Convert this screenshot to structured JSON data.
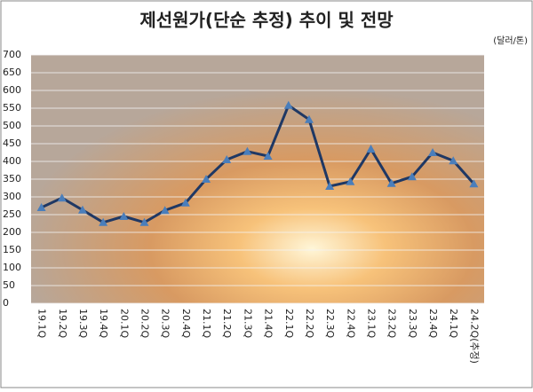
{
  "chart_data": {
    "type": "line",
    "title": "제선원가(단순 추정) 추이 및 전망",
    "unit_label": "(달러/톤)",
    "categories": [
      "19.1Q",
      "19.2Q",
      "19.3Q",
      "19.4Q",
      "20.1Q",
      "20.2Q",
      "20.3Q",
      "20.4Q",
      "21.1Q",
      "21.2Q",
      "21.3Q",
      "21.4Q",
      "22.1Q",
      "22.2Q",
      "22.3Q",
      "22.4Q",
      "23.1Q",
      "23.2Q",
      "23.3Q",
      "23.4Q",
      "24.1Q",
      "24.2Q(추정)"
    ],
    "series": [
      {
        "color": "#1f3864",
        "marker_color": "#4a7ebb",
        "values": [
          270,
          297,
          263,
          228,
          245,
          228,
          262,
          283,
          350,
          405,
          428,
          415,
          558,
          518,
          330,
          343,
          435,
          338,
          357,
          425,
          402,
          337
        ]
      }
    ],
    "ylim": [
      0,
      700
    ],
    "yticks": [
      0,
      50,
      100,
      150,
      200,
      250,
      300,
      350,
      400,
      450,
      500,
      550,
      600,
      650,
      700
    ],
    "grid": true
  }
}
